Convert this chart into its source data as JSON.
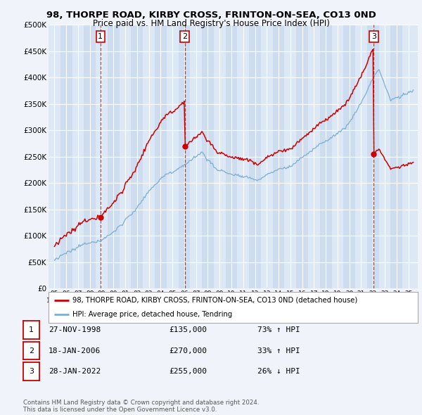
{
  "title_line1": "98, THORPE ROAD, KIRBY CROSS, FRINTON-ON-SEA, CO13 0ND",
  "title_line2": "Price paid vs. HM Land Registry's House Price Index (HPI)",
  "hpi_color": "#7bafd4",
  "price_color": "#cc0000",
  "background_color": "#f0f4fa",
  "plot_bg_color": "#dce8f5",
  "plot_bg_alt": "#cddcee",
  "ylim": [
    0,
    500000
  ],
  "yticks": [
    0,
    50000,
    100000,
    150000,
    200000,
    250000,
    300000,
    350000,
    400000,
    450000,
    500000
  ],
  "ytick_labels": [
    "£0",
    "£50K",
    "£100K",
    "£150K",
    "£200K",
    "£250K",
    "£300K",
    "£350K",
    "£400K",
    "£450K",
    "£500K"
  ],
  "xlim_min": 1994.5,
  "xlim_max": 2025.8,
  "sales": [
    {
      "label": "1",
      "date": "27-NOV-1998",
      "price": 135000,
      "x": 1998.9
    },
    {
      "label": "2",
      "date": "18-JAN-2006",
      "price": 270000,
      "x": 2006.05
    },
    {
      "label": "3",
      "date": "28-JAN-2022",
      "price": 255000,
      "x": 2022.07
    }
  ],
  "legend_line1": "98, THORPE ROAD, KIRBY CROSS, FRINTON-ON-SEA, CO13 0ND (detached house)",
  "legend_line2": "HPI: Average price, detached house, Tendring",
  "table_rows": [
    {
      "num": "1",
      "date": "27-NOV-1998",
      "price": "£135,000",
      "hpi": "73% ↑ HPI"
    },
    {
      "num": "2",
      "date": "18-JAN-2006",
      "price": "£270,000",
      "hpi": "33% ↑ HPI"
    },
    {
      "num": "3",
      "date": "28-JAN-2022",
      "price": "£255,000",
      "hpi": "26% ↓ HPI"
    }
  ],
  "footer": "Contains HM Land Registry data © Crown copyright and database right 2024.\nThis data is licensed under the Open Government Licence v3.0."
}
